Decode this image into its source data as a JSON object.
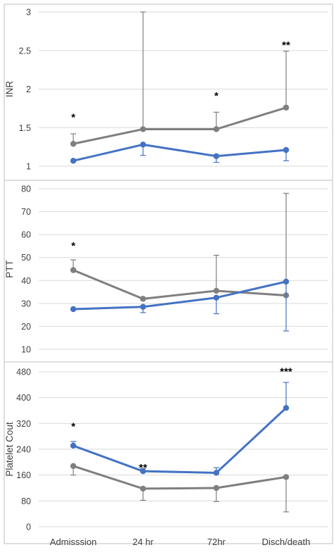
{
  "colors": {
    "gray_series": "#7f7f7f",
    "blue_series": "#4472c4",
    "gridline": "#d9d9d9",
    "panel_border": "#bfbfbf",
    "text": "#404040"
  },
  "chart_data": [
    {
      "type": "line",
      "ylabel": "INR",
      "ylim": [
        1,
        3
      ],
      "yticks": [
        1,
        1.5,
        2,
        2.5,
        3
      ],
      "ytick_labels": [
        "1",
        "1.5",
        "2",
        "2.5",
        "3"
      ],
      "grid": true,
      "categories": [
        "Admisssion",
        "24 hr",
        "72hr",
        "Disch/death"
      ],
      "series": [
        {
          "color": "#7f7f7f",
          "values": [
            1.29,
            1.48,
            1.48,
            1.76
          ],
          "error_upper": [
            1.42,
            3.0,
            1.7,
            2.49
          ],
          "error_lower": [
            null,
            null,
            null,
            null
          ]
        },
        {
          "color": "#4472c4",
          "values": [
            1.07,
            1.28,
            1.13,
            1.21
          ],
          "error_upper": [
            null,
            null,
            null,
            null
          ],
          "error_lower": [
            1.06,
            1.14,
            1.05,
            1.07
          ]
        }
      ],
      "annotations": [
        {
          "category": 0,
          "y": 1.66,
          "text": "*"
        },
        {
          "category": 2,
          "y": 1.94,
          "text": "*"
        },
        {
          "category": 3,
          "y": 2.6,
          "text": "**"
        }
      ]
    },
    {
      "type": "line",
      "ylabel": "PTT",
      "ylim": [
        10,
        80
      ],
      "yticks": [
        10,
        20,
        30,
        40,
        50,
        60,
        70,
        80
      ],
      "ytick_labels": [
        "10",
        "20",
        "30",
        "40",
        "50",
        "60",
        "70",
        "80"
      ],
      "grid": true,
      "categories": [
        "Admisssion",
        "24 hr",
        "72hr",
        "Disch/death"
      ],
      "series": [
        {
          "color": "#7f7f7f",
          "values": [
            44.5,
            32.0,
            35.5,
            33.5
          ],
          "error_upper": [
            49,
            null,
            51,
            78
          ],
          "error_lower": [
            null,
            null,
            null,
            null
          ]
        },
        {
          "color": "#4472c4",
          "values": [
            27.5,
            28.5,
            32.5,
            39.5
          ],
          "error_upper": [
            null,
            null,
            null,
            null
          ],
          "error_lower": [
            null,
            26,
            25.5,
            18
          ]
        }
      ],
      "annotations": [
        {
          "category": 0,
          "y": 56,
          "text": "*"
        }
      ]
    },
    {
      "type": "line",
      "ylabel": "Platelet Cout",
      "ylim": [
        0,
        480
      ],
      "yticks": [
        0,
        80,
        160,
        240,
        320,
        400,
        480
      ],
      "ytick_labels": [
        "0",
        "80",
        "160",
        "240",
        "320",
        "400",
        "480"
      ],
      "grid": true,
      "categories": [
        "Admisssion",
        "24 hr",
        "72hr",
        "Disch/death"
      ],
      "xtick_labels": [
        "Admisssion",
        "24 hr",
        "72hr",
        "Disch/death"
      ],
      "series": [
        {
          "color": "#7f7f7f",
          "values": [
            188,
            118,
            120,
            154
          ],
          "error_upper": [
            null,
            null,
            null,
            null
          ],
          "error_lower": [
            160,
            82,
            78,
            46
          ]
        },
        {
          "color": "#4472c4",
          "values": [
            251,
            172,
            167,
            368
          ],
          "error_upper": [
            264,
            180,
            183,
            447
          ],
          "error_lower": [
            null,
            null,
            null,
            null
          ]
        }
      ],
      "annotations": [
        {
          "category": 0,
          "y": 318,
          "text": "*"
        },
        {
          "category": 1,
          "y": 190,
          "text": "**"
        },
        {
          "category": 3,
          "y": 488,
          "text": "***"
        }
      ]
    }
  ]
}
